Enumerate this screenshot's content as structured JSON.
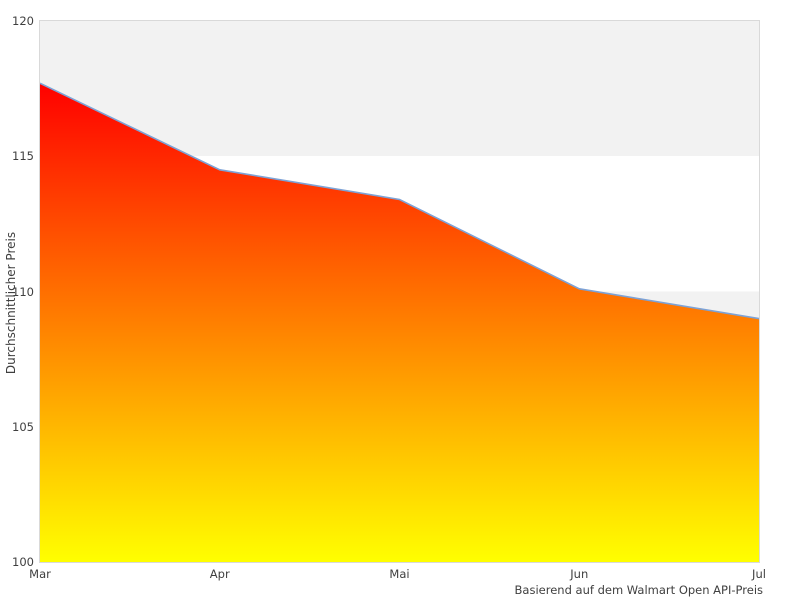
{
  "chart_data": {
    "type": "area",
    "categories": [
      "Mar",
      "Apr",
      "Mai",
      "Jun",
      "Jul"
    ],
    "values": [
      117.7,
      114.5,
      113.4,
      110.1,
      109.0
    ],
    "title": "",
    "xlabel": "",
    "ylabel": "Durchschnittlicher Preis",
    "caption": "Basierend auf dem Walmart Open API-Preis",
    "ylim": [
      100,
      120
    ],
    "yticks": [
      100,
      105,
      110,
      115,
      120
    ],
    "grid": "alternating-horizontal-bands",
    "legend_position": "none",
    "colors": {
      "line": "#7da2d6",
      "area_gradient_top": "#ff0000",
      "area_gradient_bottom": "#ffff00",
      "band_gray": "#f2f2f2",
      "band_white": "#ffffff",
      "plot_border": "#d9d9d9",
      "text": "#3f3f3f"
    }
  }
}
